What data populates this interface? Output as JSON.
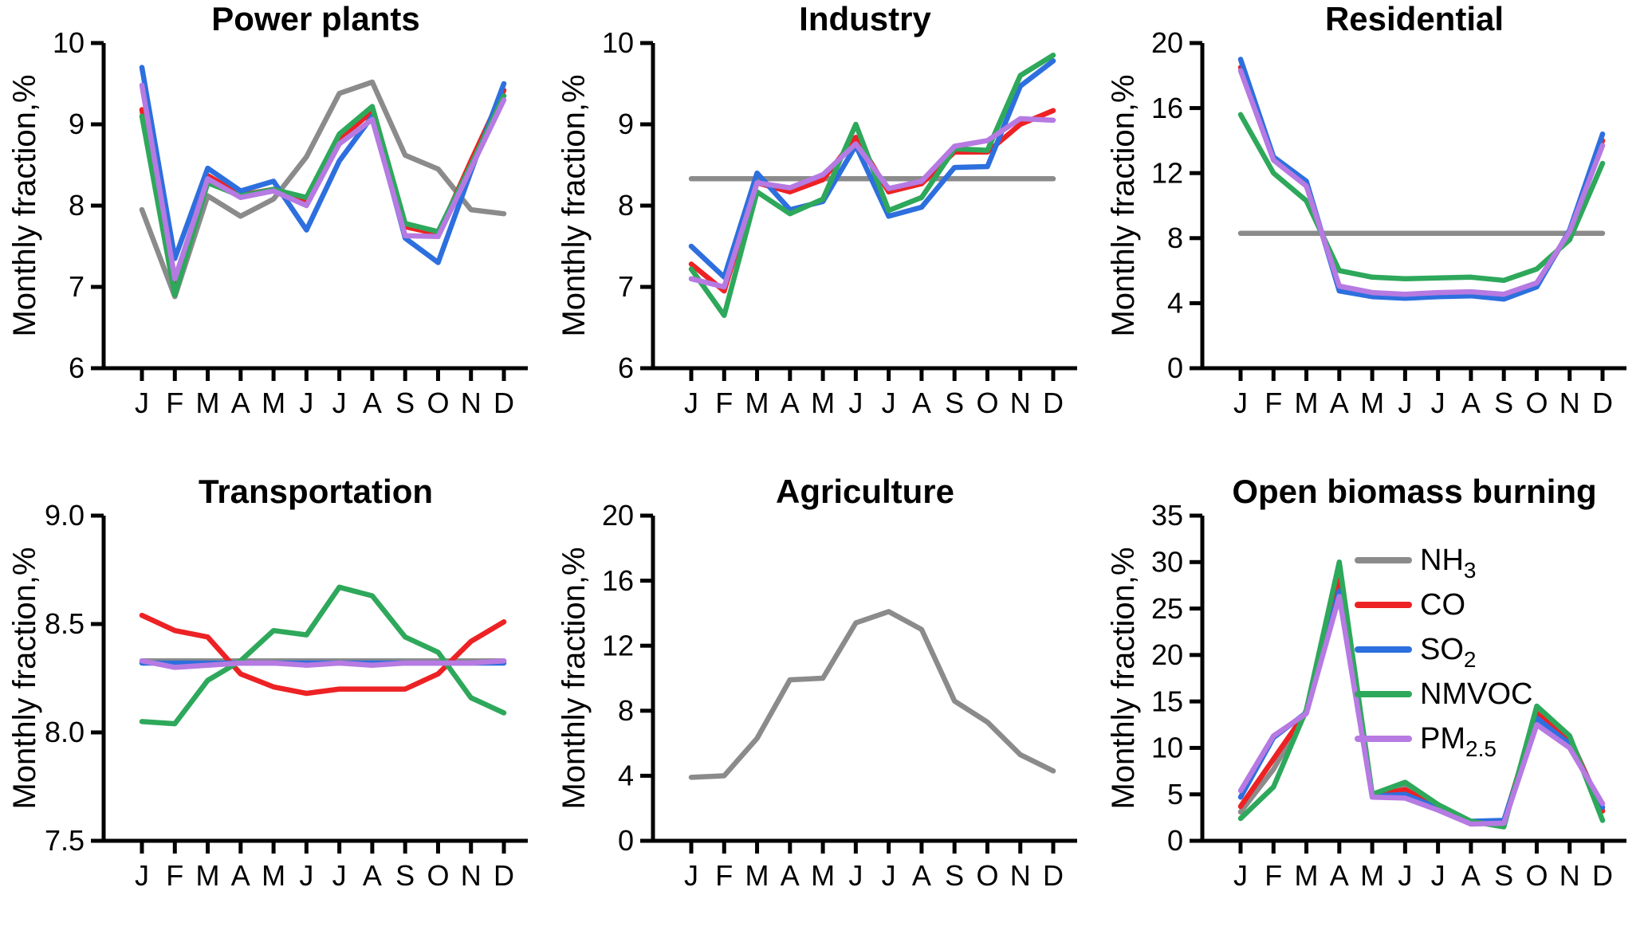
{
  "figure": {
    "ylabel": "Monthly fraction,%",
    "months": [
      "J",
      "F",
      "M",
      "A",
      "M",
      "J",
      "J",
      "A",
      "S",
      "O",
      "N",
      "D"
    ],
    "colors": {
      "NH3": "#8b8b8b",
      "CO": "#ed2224",
      "SO2": "#2d6fde",
      "NMVOC": "#2ea85b",
      "PM2.5": "#b67ae2"
    },
    "axis_color": "#000000",
    "background": "#ffffff",
    "legend": {
      "panel": "Open biomass burning",
      "position": "upper-right",
      "entries": [
        {
          "key": "NH3",
          "label": [
            {
              "t": "NH"
            },
            {
              "t": "3",
              "sub": true
            }
          ]
        },
        {
          "key": "CO",
          "label": [
            {
              "t": "CO"
            }
          ]
        },
        {
          "key": "SO2",
          "label": [
            {
              "t": "SO"
            },
            {
              "t": "2",
              "sub": true
            }
          ]
        },
        {
          "key": "NMVOC",
          "label": [
            {
              "t": "NMVOC"
            }
          ]
        },
        {
          "key": "PM2.5",
          "label": [
            {
              "t": "PM"
            },
            {
              "t": "2.5",
              "sub": true
            }
          ]
        }
      ]
    }
  },
  "chart_data": [
    {
      "type": "line",
      "title": "Power plants",
      "ylabel": "Monthly fraction,%",
      "categories": [
        "J",
        "F",
        "M",
        "A",
        "M",
        "J",
        "J",
        "A",
        "S",
        "O",
        "N",
        "D"
      ],
      "ylim": [
        6,
        10
      ],
      "yticks": [
        6,
        7,
        8,
        9,
        10
      ],
      "ytick_labels": [
        "6",
        "7",
        "8",
        "9",
        "10"
      ],
      "grid": false,
      "series": [
        {
          "name": "NH3",
          "values": [
            7.95,
            6.88,
            8.12,
            7.87,
            8.08,
            8.6,
            9.38,
            9.52,
            8.62,
            8.45,
            7.95,
            7.9
          ]
        },
        {
          "name": "CO",
          "values": [
            9.18,
            7.02,
            8.37,
            8.13,
            8.2,
            8.06,
            8.82,
            9.16,
            7.74,
            7.65,
            8.55,
            9.42
          ]
        },
        {
          "name": "SO2",
          "values": [
            9.7,
            7.35,
            8.46,
            8.18,
            8.3,
            7.7,
            8.55,
            9.1,
            7.6,
            7.3,
            8.42,
            9.5
          ]
        },
        {
          "name": "NMVOC",
          "values": [
            9.1,
            6.9,
            8.28,
            8.12,
            8.2,
            8.1,
            8.88,
            9.22,
            7.78,
            7.68,
            8.5,
            9.35
          ]
        },
        {
          "name": "PM2.5",
          "values": [
            9.48,
            7.1,
            8.33,
            8.1,
            8.18,
            8.0,
            8.76,
            9.06,
            7.63,
            7.62,
            8.46,
            9.3
          ]
        }
      ]
    },
    {
      "type": "line",
      "title": "Industry",
      "ylabel": "Monthly fraction,%",
      "categories": [
        "J",
        "F",
        "M",
        "A",
        "M",
        "J",
        "J",
        "A",
        "S",
        "O",
        "N",
        "D"
      ],
      "ylim": [
        6,
        10
      ],
      "yticks": [
        6,
        7,
        8,
        9,
        10
      ],
      "ytick_labels": [
        "6",
        "7",
        "8",
        "9",
        "10"
      ],
      "grid": false,
      "series": [
        {
          "name": "NH3",
          "values": [
            8.33,
            8.33,
            8.33,
            8.33,
            8.33,
            8.33,
            8.33,
            8.33,
            8.33,
            8.33,
            8.33,
            8.33
          ]
        },
        {
          "name": "CO",
          "values": [
            7.28,
            6.95,
            8.28,
            8.17,
            8.32,
            8.84,
            8.17,
            8.27,
            8.66,
            8.66,
            9.0,
            9.17
          ]
        },
        {
          "name": "SO2",
          "values": [
            7.5,
            7.12,
            8.4,
            7.95,
            8.05,
            8.74,
            7.87,
            7.98,
            8.47,
            8.48,
            9.47,
            9.78
          ]
        },
        {
          "name": "NMVOC",
          "values": [
            7.22,
            6.65,
            8.17,
            7.9,
            8.08,
            9.0,
            7.94,
            8.1,
            8.7,
            8.68,
            9.6,
            9.85
          ]
        },
        {
          "name": "PM2.5",
          "values": [
            7.1,
            7.0,
            8.28,
            8.22,
            8.38,
            8.76,
            8.21,
            8.3,
            8.73,
            8.8,
            9.07,
            9.05
          ]
        }
      ]
    },
    {
      "type": "line",
      "title": "Residential",
      "ylabel": "Monthly fraction,%",
      "categories": [
        "J",
        "F",
        "M",
        "A",
        "M",
        "J",
        "J",
        "A",
        "S",
        "O",
        "N",
        "D"
      ],
      "ylim": [
        0,
        20
      ],
      "yticks": [
        0,
        4,
        8,
        12,
        16,
        20
      ],
      "ytick_labels": [
        "0",
        "4",
        "8",
        "12",
        "16",
        "20"
      ],
      "grid": false,
      "series": [
        {
          "name": "NH3",
          "values": [
            8.3,
            8.3,
            8.3,
            8.3,
            8.3,
            8.3,
            8.3,
            8.3,
            8.3,
            8.3,
            8.3,
            8.3
          ]
        },
        {
          "name": "CO",
          "values": [
            18.5,
            12.9,
            11.3,
            4.9,
            4.5,
            4.4,
            4.5,
            4.55,
            4.4,
            5.1,
            8.4,
            14.0
          ]
        },
        {
          "name": "SO2",
          "values": [
            19.0,
            13.0,
            11.5,
            4.75,
            4.4,
            4.3,
            4.4,
            4.45,
            4.25,
            5.0,
            8.5,
            14.4
          ]
        },
        {
          "name": "NMVOC",
          "values": [
            15.6,
            12.0,
            10.3,
            6.0,
            5.6,
            5.5,
            5.55,
            5.6,
            5.4,
            6.1,
            7.9,
            12.6
          ]
        },
        {
          "name": "PM2.5",
          "values": [
            18.3,
            12.8,
            11.2,
            5.05,
            4.65,
            4.55,
            4.65,
            4.7,
            4.55,
            5.25,
            8.4,
            13.7
          ]
        }
      ]
    },
    {
      "type": "line",
      "title": "Transportation",
      "ylabel": "Monthly fraction,%",
      "categories": [
        "J",
        "F",
        "M",
        "A",
        "M",
        "J",
        "J",
        "A",
        "S",
        "O",
        "N",
        "D"
      ],
      "ylim": [
        7.5,
        9.0
      ],
      "yticks": [
        7.5,
        8.0,
        8.5,
        9.0
      ],
      "ytick_labels": [
        "7.5",
        "8.0",
        "8.5",
        "9.0"
      ],
      "grid": false,
      "series": [
        {
          "name": "NH3",
          "values": [
            8.33,
            8.33,
            8.33,
            8.33,
            8.33,
            8.33,
            8.33,
            8.33,
            8.33,
            8.33,
            8.33,
            8.33
          ]
        },
        {
          "name": "CO",
          "values": [
            8.54,
            8.47,
            8.44,
            8.27,
            8.21,
            8.18,
            8.2,
            8.2,
            8.2,
            8.27,
            8.42,
            8.51
          ]
        },
        {
          "name": "SO2",
          "values": [
            8.32,
            8.32,
            8.32,
            8.32,
            8.32,
            8.32,
            8.32,
            8.32,
            8.32,
            8.32,
            8.32,
            8.32
          ]
        },
        {
          "name": "NMVOC",
          "values": [
            8.05,
            8.04,
            8.24,
            8.33,
            8.47,
            8.45,
            8.67,
            8.63,
            8.44,
            8.37,
            8.16,
            8.09
          ]
        },
        {
          "name": "PM2.5",
          "values": [
            8.33,
            8.3,
            8.31,
            8.32,
            8.32,
            8.31,
            8.32,
            8.31,
            8.32,
            8.32,
            8.32,
            8.33
          ]
        }
      ]
    },
    {
      "type": "line",
      "title": "Agriculture",
      "ylabel": "Monthly fraction,%",
      "categories": [
        "J",
        "F",
        "M",
        "A",
        "M",
        "J",
        "J",
        "A",
        "S",
        "O",
        "N",
        "D"
      ],
      "ylim": [
        0,
        20
      ],
      "yticks": [
        0,
        4,
        8,
        12,
        16,
        20
      ],
      "ytick_labels": [
        "0",
        "4",
        "8",
        "12",
        "16",
        "20"
      ],
      "grid": false,
      "series": [
        {
          "name": "NH3",
          "values": [
            3.9,
            4.0,
            6.3,
            9.9,
            10.0,
            13.4,
            14.1,
            13.0,
            8.6,
            7.3,
            5.3,
            4.3
          ]
        }
      ]
    },
    {
      "type": "line",
      "title": "Open biomass burning",
      "ylabel": "Monthly fraction,%",
      "categories": [
        "J",
        "F",
        "M",
        "A",
        "M",
        "J",
        "J",
        "A",
        "S",
        "O",
        "N",
        "D"
      ],
      "ylim": [
        0,
        35
      ],
      "yticks": [
        0,
        5,
        10,
        15,
        20,
        25,
        30,
        35
      ],
      "ytick_labels": [
        "0",
        "5",
        "10",
        "15",
        "20",
        "25",
        "30",
        "35"
      ],
      "grid": false,
      "legend_here": true,
      "series": [
        {
          "name": "NH3",
          "values": [
            3.1,
            7.7,
            13.9,
            27.8,
            4.9,
            5.8,
            3.6,
            1.9,
            2.0,
            13.8,
            11.1,
            3.3
          ]
        },
        {
          "name": "CO",
          "values": [
            3.7,
            8.8,
            13.9,
            28.1,
            4.9,
            5.5,
            3.6,
            2.0,
            2.1,
            13.7,
            11.0,
            3.2
          ]
        },
        {
          "name": "SO2",
          "values": [
            4.7,
            11.1,
            13.8,
            26.9,
            4.8,
            5.0,
            3.5,
            2.1,
            2.2,
            13.2,
            10.4,
            3.6
          ]
        },
        {
          "name": "NMVOC",
          "values": [
            2.4,
            5.8,
            14.1,
            30.0,
            5.0,
            6.3,
            3.9,
            2.1,
            1.5,
            14.5,
            11.3,
            2.2
          ]
        },
        {
          "name": "PM2.5",
          "values": [
            5.4,
            11.3,
            13.7,
            26.3,
            4.7,
            4.6,
            3.3,
            1.8,
            1.9,
            12.5,
            10.0,
            4.0
          ]
        }
      ]
    }
  ]
}
